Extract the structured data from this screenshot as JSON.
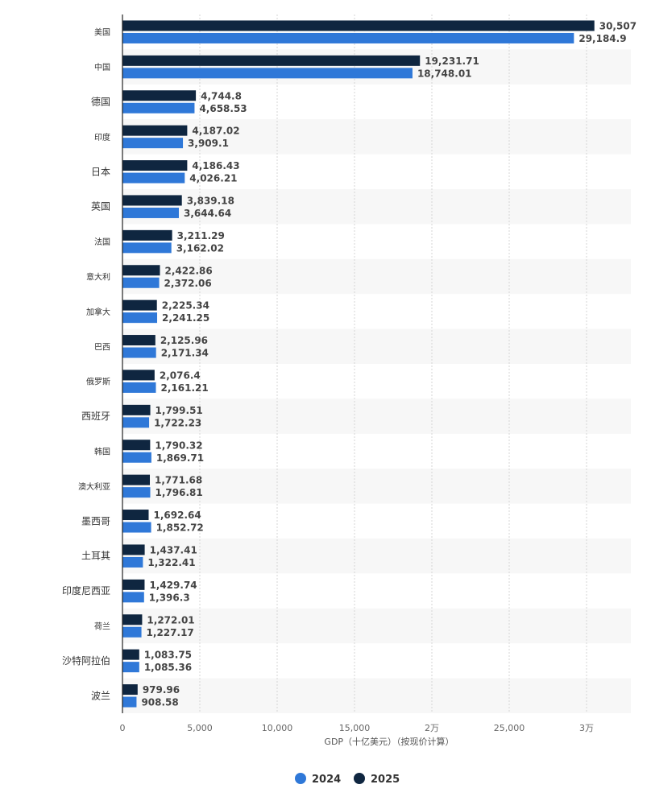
{
  "chart_data": {
    "type": "bar",
    "orientation": "horizontal",
    "categories": [
      "美国",
      "中国",
      "德国",
      "印度",
      "日本",
      "英国",
      "法国",
      "意大利",
      "加拿大",
      "巴西",
      "俄罗斯",
      "西班牙",
      "韩国",
      "澳大利亚",
      "墨西哥",
      "土耳其",
      "印度尼西亚",
      "荷兰",
      "沙特阿拉伯",
      "波兰"
    ],
    "series": [
      {
        "name": "2025",
        "color": "#0f2640",
        "values": [
          30507,
          19231.71,
          4744.8,
          4187.02,
          4186.43,
          3839.18,
          3211.29,
          2422.86,
          2225.34,
          2125.96,
          2076.4,
          1799.51,
          1790.32,
          1771.68,
          1692.64,
          1437.41,
          1429.74,
          1272.01,
          1083.75,
          979.96
        ],
        "labels": [
          "30,507",
          "19,231.71",
          "4,744.8",
          "4,187.02",
          "4,186.43",
          "3,839.18",
          "3,211.29",
          "2,422.86",
          "2,225.34",
          "2,125.96",
          "2,076.4",
          "1,799.51",
          "1,790.32",
          "1,771.68",
          "1,692.64",
          "1,437.41",
          "1,429.74",
          "1,272.01",
          "1,083.75",
          "979.96"
        ]
      },
      {
        "name": "2024",
        "color": "#2f78d8",
        "values": [
          29184.9,
          18748.01,
          4658.53,
          3909.1,
          4026.21,
          3644.64,
          3162.02,
          2372.06,
          2241.25,
          2171.34,
          2161.21,
          1722.23,
          1869.71,
          1796.81,
          1852.72,
          1322.41,
          1396.3,
          1227.17,
          1085.36,
          908.58
        ],
        "labels": [
          "29,184.9",
          "18,748.01",
          "4,658.53",
          "3,909.1",
          "4,026.21",
          "3,644.64",
          "3,162.02",
          "2,372.06",
          "2,241.25",
          "2,171.34",
          "2,161.21",
          "1,722.23",
          "1,869.71",
          "1,796.81",
          "1,852.72",
          "1,322.41",
          "1,396.3",
          "1,227.17",
          "1,085.36",
          "908.58"
        ]
      }
    ],
    "x_ticks": [
      0,
      5000,
      10000,
      15000,
      20000,
      25000,
      30000
    ],
    "x_tick_labels": [
      "0",
      "5,000",
      "10,000",
      "15,000",
      "2万",
      "25,000",
      "3万"
    ],
    "xlabel": "GDP（十亿美元）（按现价计算）",
    "xlim": [
      0,
      32500
    ],
    "grid": true,
    "legend_position": "bottom-center",
    "legend": [
      {
        "name": "2024",
        "color": "#2f78d8"
      },
      {
        "name": "2025",
        "color": "#0f2640"
      }
    ]
  }
}
